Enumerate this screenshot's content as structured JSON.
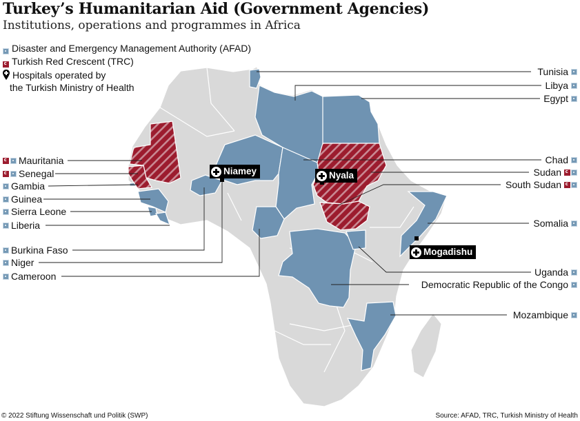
{
  "title": "Turkey’s Humanitarian Aid (Government Agencies)",
  "subtitle": "Institutions, operations and programmes in Africa",
  "legend": {
    "afad": "Disaster and Emergency Management Authority (AFAD)",
    "trc": "Turkish Red Crescent (TRC)",
    "hospitals_line1": "Hospitals operated by",
    "hospitals_line2": "the Turkish Ministry of Health"
  },
  "colors": {
    "afad_fill": "#6f93b2",
    "trc_stripe": "#9c1c2e",
    "other_land": "#d9d9d9",
    "border": "#ffffff"
  },
  "countries_left": [
    {
      "name": "Mauritania",
      "afad": true,
      "trc": true
    },
    {
      "name": "Senegal",
      "afad": true,
      "trc": true
    },
    {
      "name": "Gambia",
      "afad": true,
      "trc": false
    },
    {
      "name": "Guinea",
      "afad": true,
      "trc": false
    },
    {
      "name": "Sierra Leone",
      "afad": true,
      "trc": false
    },
    {
      "name": "Liberia",
      "afad": true,
      "trc": false
    },
    {
      "name": "Burkina Faso",
      "afad": true,
      "trc": false
    },
    {
      "name": "Niger",
      "afad": true,
      "trc": false
    },
    {
      "name": "Cameroon",
      "afad": true,
      "trc": false
    }
  ],
  "countries_right": [
    {
      "name": "Tunisia",
      "afad": true,
      "trc": false
    },
    {
      "name": "Libya",
      "afad": true,
      "trc": false
    },
    {
      "name": "Egypt",
      "afad": true,
      "trc": false
    },
    {
      "name": "Chad",
      "afad": true,
      "trc": false
    },
    {
      "name": "Sudan",
      "afad": true,
      "trc": true
    },
    {
      "name": "South Sudan",
      "afad": true,
      "trc": true
    },
    {
      "name": "Somalia",
      "afad": true,
      "trc": false
    },
    {
      "name": "Uganda",
      "afad": true,
      "trc": false
    },
    {
      "name": "Democratic Republic of the Congo",
      "afad": true,
      "trc": false
    },
    {
      "name": "Mozambique",
      "afad": true,
      "trc": false
    }
  ],
  "hospitals": [
    "Niamey",
    "Nyala",
    "Mogadishu"
  ],
  "footer": {
    "copyright": "© 2022 Stiftung Wissenschaft und Politik (SWP)",
    "source": "Source: AFAD, TRC, Turkish Ministry of Health"
  }
}
